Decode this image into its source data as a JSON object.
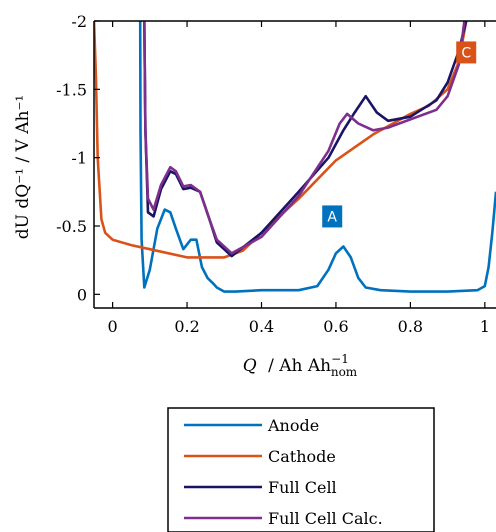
{
  "chart_data": {
    "type": "line",
    "xlabel_parts": {
      "q": "Q",
      "unit": "/ Ah Ah",
      "sup": "−1",
      "sub": "nom"
    },
    "ylabel": "dU dQ⁻¹ / V Ah⁻¹",
    "xlim": [
      -0.05,
      1.03
    ],
    "ylim": [
      0.1,
      -2.0
    ],
    "y_reversed": true,
    "x_ticks": [
      0,
      0.2,
      0.4,
      0.6,
      0.8,
      1
    ],
    "x_tick_labels": [
      "0",
      "0.2",
      "0.4",
      "0.6",
      "0.8",
      "1"
    ],
    "y_ticks": [
      0,
      -0.5,
      -1,
      -1.5,
      -2
    ],
    "y_tick_labels": [
      "0",
      "-0.5",
      "-1",
      "-1.5",
      "-2"
    ],
    "annotations": [
      {
        "text": "A",
        "x": 0.59,
        "y": -0.57,
        "color": "#0072BD"
      },
      {
        "text": "C",
        "x": 0.95,
        "y": -1.77,
        "color": "#D95319"
      }
    ],
    "legend_position": "below",
    "series": [
      {
        "name": "Anode",
        "color": "#0072BD",
        "x": [
          0.074,
          0.075,
          0.078,
          0.085,
          0.1,
          0.12,
          0.14,
          0.155,
          0.17,
          0.19,
          0.21,
          0.225,
          0.24,
          0.255,
          0.27,
          0.28,
          0.3,
          0.33,
          0.4,
          0.5,
          0.55,
          0.58,
          0.6,
          0.62,
          0.64,
          0.66,
          0.68,
          0.72,
          0.8,
          0.9,
          0.98,
          1.0,
          1.01,
          1.02,
          1.03
        ],
        "y": [
          -2.0,
          -1.2,
          -0.4,
          -0.05,
          -0.18,
          -0.48,
          -0.62,
          -0.6,
          -0.48,
          -0.33,
          -0.4,
          -0.4,
          -0.2,
          -0.12,
          -0.08,
          -0.05,
          -0.02,
          -0.02,
          -0.03,
          -0.03,
          -0.06,
          -0.18,
          -0.3,
          -0.35,
          -0.27,
          -0.12,
          -0.05,
          -0.03,
          -0.02,
          -0.02,
          -0.03,
          -0.06,
          -0.2,
          -0.45,
          -0.75
        ]
      },
      {
        "name": "Cathode",
        "color": "#D95319",
        "x": [
          -0.05,
          -0.045,
          -0.04,
          -0.03,
          -0.02,
          0.0,
          0.05,
          0.1,
          0.2,
          0.3,
          0.35,
          0.4,
          0.5,
          0.6,
          0.7,
          0.8,
          0.85,
          0.9,
          0.93,
          0.95
        ],
        "y": [
          -2.0,
          -1.6,
          -1.0,
          -0.55,
          -0.45,
          -0.4,
          -0.36,
          -0.33,
          -0.27,
          -0.27,
          -0.32,
          -0.45,
          -0.7,
          -0.98,
          -1.17,
          -1.32,
          -1.38,
          -1.5,
          -1.7,
          -2.0
        ]
      },
      {
        "name": "Full Cell",
        "color": "#1B1464",
        "x": [
          0.085,
          0.088,
          0.095,
          0.11,
          0.13,
          0.155,
          0.17,
          0.19,
          0.21,
          0.235,
          0.26,
          0.28,
          0.32,
          0.4,
          0.5,
          0.58,
          0.62,
          0.65,
          0.68,
          0.71,
          0.74,
          0.8,
          0.87,
          0.9,
          0.93,
          0.95
        ],
        "y": [
          -2.0,
          -1.2,
          -0.6,
          -0.57,
          -0.77,
          -0.9,
          -0.88,
          -0.77,
          -0.78,
          -0.75,
          -0.55,
          -0.38,
          -0.28,
          -0.45,
          -0.75,
          -1.0,
          -1.2,
          -1.33,
          -1.45,
          -1.33,
          -1.27,
          -1.3,
          -1.42,
          -1.55,
          -1.78,
          -2.0
        ]
      },
      {
        "name": "Full Cell Calc.",
        "color": "#7E2F8E",
        "x": [
          0.085,
          0.088,
          0.095,
          0.11,
          0.13,
          0.155,
          0.17,
          0.19,
          0.21,
          0.235,
          0.26,
          0.28,
          0.32,
          0.4,
          0.5,
          0.58,
          0.61,
          0.63,
          0.66,
          0.7,
          0.74,
          0.8,
          0.87,
          0.9,
          0.93,
          0.945
        ],
        "y": [
          -2.0,
          -1.2,
          -0.7,
          -0.62,
          -0.8,
          -0.93,
          -0.9,
          -0.79,
          -0.8,
          -0.75,
          -0.55,
          -0.4,
          -0.3,
          -0.42,
          -0.72,
          -1.05,
          -1.25,
          -1.32,
          -1.25,
          -1.2,
          -1.22,
          -1.28,
          -1.35,
          -1.45,
          -1.68,
          -2.0
        ]
      }
    ]
  }
}
